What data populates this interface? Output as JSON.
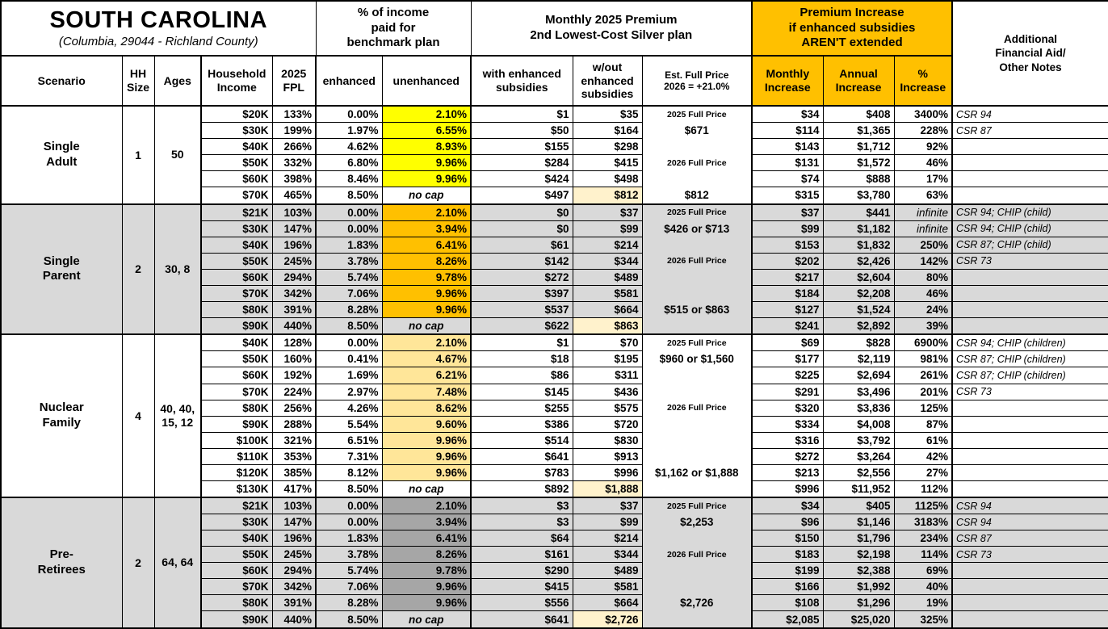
{
  "title": {
    "state": "SOUTH CAROLINA",
    "location": "(Columbia, 29044 - Richland County)"
  },
  "header": {
    "group_income_pct": "% of income\npaid for\nbenchmark plan",
    "group_premium": "Monthly 2025 Premium\n2nd Lowest-Cost Silver plan",
    "group_increase": "Premium Increase\nif enhanced subsidies\nAREN'T extended",
    "notes": "Additional\nFinancial Aid/\nOther Notes",
    "cols": {
      "scenario": "Scenario",
      "hh": "HH\nSize",
      "ages": "Ages",
      "income": "Household\nIncome",
      "fpl": "2025\nFPL",
      "enhanced": "enhanced",
      "unenhanced": "unenhanced",
      "with_sub": "with enhanced\nsubsidies",
      "wout_sub": "w/out\nenhanced\nsubsidies",
      "est": "Est. Full Price\n2026 = +21.0%",
      "monthly": "Monthly\nIncrease",
      "annual": "Annual\nIncrease",
      "pct": "%\nIncrease"
    }
  },
  "colors": {
    "section_shaded": "#D9D9D9",
    "yellow": "#FFFF00",
    "orange": "#FFC000",
    "tan": "#FFE699",
    "dark_gray": "#A6A6A6",
    "highlight_cream": "#FFF2CC",
    "header_accent": "#FFC000"
  },
  "scenarios": [
    {
      "name": "Single\nAdult",
      "hh_size": "1",
      "ages": "50",
      "shaded": false,
      "unenhanced_color": "#FFFF00",
      "rows": [
        {
          "income": "$20K",
          "fpl": "133%",
          "enhanced": "0.00%",
          "unenhanced": "2.10%",
          "with_sub": "$1",
          "wout_sub": "$35",
          "est": "2025 Full Price",
          "monthly": "$34",
          "annual": "$408",
          "pct": "3400%",
          "notes": "CSR 94"
        },
        {
          "income": "$30K",
          "fpl": "199%",
          "enhanced": "1.97%",
          "unenhanced": "6.55%",
          "with_sub": "$50",
          "wout_sub": "$164",
          "est": "$671",
          "monthly": "$114",
          "annual": "$1,365",
          "pct": "228%",
          "notes": "CSR 87"
        },
        {
          "income": "$40K",
          "fpl": "266%",
          "enhanced": "4.62%",
          "unenhanced": "8.93%",
          "with_sub": "$155",
          "wout_sub": "$298",
          "est": "",
          "monthly": "$143",
          "annual": "$1,712",
          "pct": "92%",
          "notes": ""
        },
        {
          "income": "$50K",
          "fpl": "332%",
          "enhanced": "6.80%",
          "unenhanced": "9.96%",
          "with_sub": "$284",
          "wout_sub": "$415",
          "est": "2026 Full Price",
          "monthly": "$131",
          "annual": "$1,572",
          "pct": "46%",
          "notes": ""
        },
        {
          "income": "$60K",
          "fpl": "398%",
          "enhanced": "8.46%",
          "unenhanced": "9.96%",
          "with_sub": "$424",
          "wout_sub": "$498",
          "est": "",
          "monthly": "$74",
          "annual": "$888",
          "pct": "17%",
          "notes": ""
        },
        {
          "income": "$70K",
          "fpl": "465%",
          "enhanced": "8.50%",
          "unenhanced": "no cap",
          "with_sub": "$497",
          "wout_sub": "$812",
          "est": "$812",
          "monthly": "$315",
          "annual": "$3,780",
          "pct": "63%",
          "notes": ""
        }
      ]
    },
    {
      "name": "Single\nParent",
      "hh_size": "2",
      "ages": "30, 8",
      "shaded": true,
      "unenhanced_color": "#FFC000",
      "rows": [
        {
          "income": "$21K",
          "fpl": "103%",
          "enhanced": "0.00%",
          "unenhanced": "2.10%",
          "with_sub": "$0",
          "wout_sub": "$37",
          "est": "2025 Full Price",
          "monthly": "$37",
          "annual": "$441",
          "pct": "infinite",
          "notes": "CSR 94; CHIP (child)"
        },
        {
          "income": "$30K",
          "fpl": "147%",
          "enhanced": "0.00%",
          "unenhanced": "3.94%",
          "with_sub": "$0",
          "wout_sub": "$99",
          "est": "$426 or $713",
          "monthly": "$99",
          "annual": "$1,182",
          "pct": "infinite",
          "notes": "CSR 94; CHIP (child)"
        },
        {
          "income": "$40K",
          "fpl": "196%",
          "enhanced": "1.83%",
          "unenhanced": "6.41%",
          "with_sub": "$61",
          "wout_sub": "$214",
          "est": "",
          "monthly": "$153",
          "annual": "$1,832",
          "pct": "250%",
          "notes": "CSR 87; CHIP (child)"
        },
        {
          "income": "$50K",
          "fpl": "245%",
          "enhanced": "3.78%",
          "unenhanced": "8.26%",
          "with_sub": "$142",
          "wout_sub": "$344",
          "est": "2026 Full Price",
          "monthly": "$202",
          "annual": "$2,426",
          "pct": "142%",
          "notes": "CSR 73"
        },
        {
          "income": "$60K",
          "fpl": "294%",
          "enhanced": "5.74%",
          "unenhanced": "9.78%",
          "with_sub": "$272",
          "wout_sub": "$489",
          "est": "",
          "monthly": "$217",
          "annual": "$2,604",
          "pct": "80%",
          "notes": ""
        },
        {
          "income": "$70K",
          "fpl": "342%",
          "enhanced": "7.06%",
          "unenhanced": "9.96%",
          "with_sub": "$397",
          "wout_sub": "$581",
          "est": "",
          "monthly": "$184",
          "annual": "$2,208",
          "pct": "46%",
          "notes": ""
        },
        {
          "income": "$80K",
          "fpl": "391%",
          "enhanced": "8.28%",
          "unenhanced": "9.96%",
          "with_sub": "$537",
          "wout_sub": "$664",
          "est": "$515 or $863",
          "monthly": "$127",
          "annual": "$1,524",
          "pct": "24%",
          "notes": ""
        },
        {
          "income": "$90K",
          "fpl": "440%",
          "enhanced": "8.50%",
          "unenhanced": "no cap",
          "with_sub": "$622",
          "wout_sub": "$863",
          "est": "",
          "monthly": "$241",
          "annual": "$2,892",
          "pct": "39%",
          "notes": ""
        }
      ]
    },
    {
      "name": "Nuclear\nFamily",
      "hh_size": "4",
      "ages": "40, 40,\n15, 12",
      "shaded": false,
      "unenhanced_color": "#FFE699",
      "rows": [
        {
          "income": "$40K",
          "fpl": "128%",
          "enhanced": "0.00%",
          "unenhanced": "2.10%",
          "with_sub": "$1",
          "wout_sub": "$70",
          "est": "2025 Full Price",
          "monthly": "$69",
          "annual": "$828",
          "pct": "6900%",
          "notes": "CSR 94; CHIP (children)"
        },
        {
          "income": "$50K",
          "fpl": "160%",
          "enhanced": "0.41%",
          "unenhanced": "4.67%",
          "with_sub": "$18",
          "wout_sub": "$195",
          "est": "$960 or $1,560",
          "monthly": "$177",
          "annual": "$2,119",
          "pct": "981%",
          "notes": "CSR 87; CHIP (children)"
        },
        {
          "income": "$60K",
          "fpl": "192%",
          "enhanced": "1.69%",
          "unenhanced": "6.21%",
          "with_sub": "$86",
          "wout_sub": "$311",
          "est": "",
          "monthly": "$225",
          "annual": "$2,694",
          "pct": "261%",
          "notes": "CSR 87; CHIP (children)"
        },
        {
          "income": "$70K",
          "fpl": "224%",
          "enhanced": "2.97%",
          "unenhanced": "7.48%",
          "with_sub": "$145",
          "wout_sub": "$436",
          "est": "",
          "monthly": "$291",
          "annual": "$3,496",
          "pct": "201%",
          "notes": "CSR 73"
        },
        {
          "income": "$80K",
          "fpl": "256%",
          "enhanced": "4.26%",
          "unenhanced": "8.62%",
          "with_sub": "$255",
          "wout_sub": "$575",
          "est": "2026 Full Price",
          "monthly": "$320",
          "annual": "$3,836",
          "pct": "125%",
          "notes": ""
        },
        {
          "income": "$90K",
          "fpl": "288%",
          "enhanced": "5.54%",
          "unenhanced": "9.60%",
          "with_sub": "$386",
          "wout_sub": "$720",
          "est": "",
          "monthly": "$334",
          "annual": "$4,008",
          "pct": "87%",
          "notes": ""
        },
        {
          "income": "$100K",
          "fpl": "321%",
          "enhanced": "6.51%",
          "unenhanced": "9.96%",
          "with_sub": "$514",
          "wout_sub": "$830",
          "est": "",
          "monthly": "$316",
          "annual": "$3,792",
          "pct": "61%",
          "notes": ""
        },
        {
          "income": "$110K",
          "fpl": "353%",
          "enhanced": "7.31%",
          "unenhanced": "9.96%",
          "with_sub": "$641",
          "wout_sub": "$913",
          "est": "",
          "monthly": "$272",
          "annual": "$3,264",
          "pct": "42%",
          "notes": ""
        },
        {
          "income": "$120K",
          "fpl": "385%",
          "enhanced": "8.12%",
          "unenhanced": "9.96%",
          "with_sub": "$783",
          "wout_sub": "$996",
          "est": "$1,162 or $1,888",
          "monthly": "$213",
          "annual": "$2,556",
          "pct": "27%",
          "notes": ""
        },
        {
          "income": "$130K",
          "fpl": "417%",
          "enhanced": "8.50%",
          "unenhanced": "no cap",
          "with_sub": "$892",
          "wout_sub": "$1,888",
          "est": "",
          "monthly": "$996",
          "annual": "$11,952",
          "pct": "112%",
          "notes": ""
        }
      ]
    },
    {
      "name": "Pre-\nRetirees",
      "hh_size": "2",
      "ages": "64, 64",
      "shaded": true,
      "unenhanced_color": "#A6A6A6",
      "rows": [
        {
          "income": "$21K",
          "fpl": "103%",
          "enhanced": "0.00%",
          "unenhanced": "2.10%",
          "with_sub": "$3",
          "wout_sub": "$37",
          "est": "2025 Full Price",
          "monthly": "$34",
          "annual": "$405",
          "pct": "1125%",
          "notes": "CSR 94"
        },
        {
          "income": "$30K",
          "fpl": "147%",
          "enhanced": "0.00%",
          "unenhanced": "3.94%",
          "with_sub": "$3",
          "wout_sub": "$99",
          "est": "$2,253",
          "monthly": "$96",
          "annual": "$1,146",
          "pct": "3183%",
          "notes": "CSR 94"
        },
        {
          "income": "$40K",
          "fpl": "196%",
          "enhanced": "1.83%",
          "unenhanced": "6.41%",
          "with_sub": "$64",
          "wout_sub": "$214",
          "est": "",
          "monthly": "$150",
          "annual": "$1,796",
          "pct": "234%",
          "notes": "CSR 87"
        },
        {
          "income": "$50K",
          "fpl": "245%",
          "enhanced": "3.78%",
          "unenhanced": "8.26%",
          "with_sub": "$161",
          "wout_sub": "$344",
          "est": "2026 Full Price",
          "monthly": "$183",
          "annual": "$2,198",
          "pct": "114%",
          "notes": "CSR 73"
        },
        {
          "income": "$60K",
          "fpl": "294%",
          "enhanced": "5.74%",
          "unenhanced": "9.78%",
          "with_sub": "$290",
          "wout_sub": "$489",
          "est": "",
          "monthly": "$199",
          "annual": "$2,388",
          "pct": "69%",
          "notes": ""
        },
        {
          "income": "$70K",
          "fpl": "342%",
          "enhanced": "7.06%",
          "unenhanced": "9.96%",
          "with_sub": "$415",
          "wout_sub": "$581",
          "est": "",
          "monthly": "$166",
          "annual": "$1,992",
          "pct": "40%",
          "notes": ""
        },
        {
          "income": "$80K",
          "fpl": "391%",
          "enhanced": "8.28%",
          "unenhanced": "9.96%",
          "with_sub": "$556",
          "wout_sub": "$664",
          "est": "$2,726",
          "monthly": "$108",
          "annual": "$1,296",
          "pct": "19%",
          "notes": ""
        },
        {
          "income": "$90K",
          "fpl": "440%",
          "enhanced": "8.50%",
          "unenhanced": "no cap",
          "with_sub": "$641",
          "wout_sub": "$2,726",
          "est": "",
          "monthly": "$2,085",
          "annual": "$25,020",
          "pct": "325%",
          "notes": ""
        }
      ]
    }
  ]
}
